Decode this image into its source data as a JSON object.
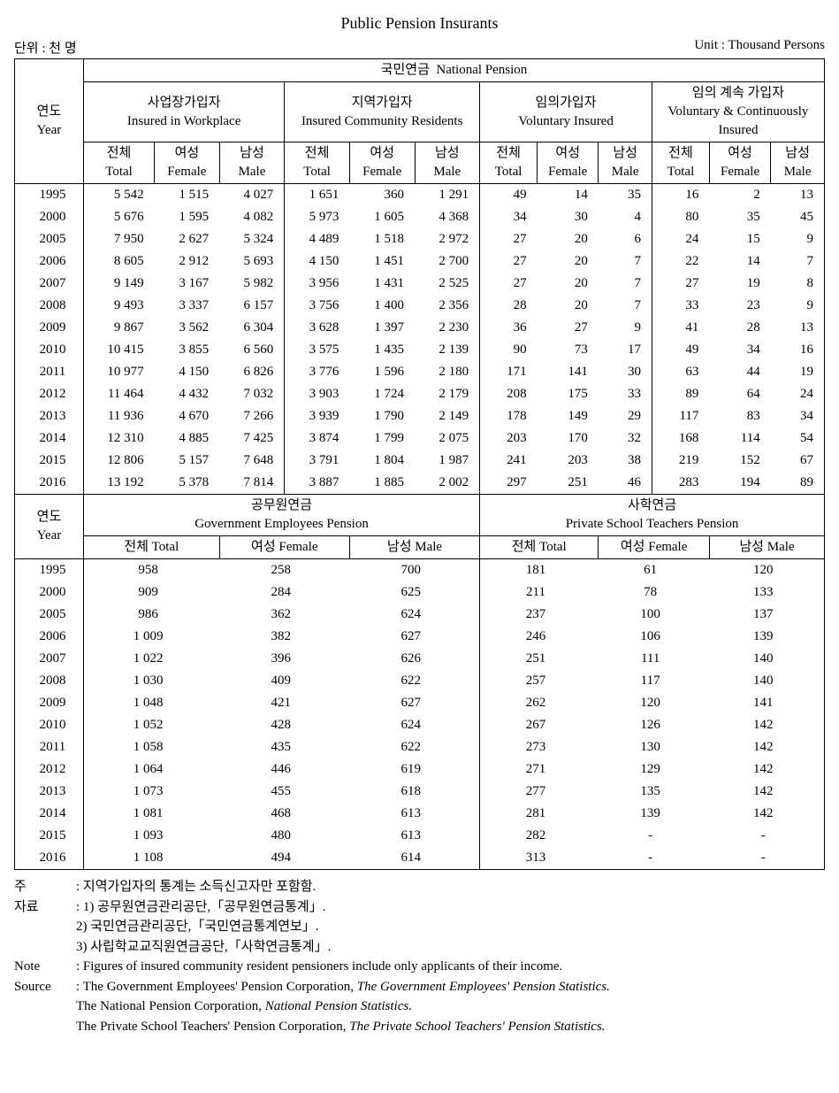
{
  "title": "Public Pension Insurants",
  "unit_left": "단위 : 천 명",
  "unit_right": "Unit : Thousand Persons",
  "header": {
    "year_kr": "연도",
    "year_en": "Year",
    "national_kr": "국민연금",
    "national_en": "National Pension",
    "workplace_kr": "사업장가입자",
    "workplace_en": "Insured in Workplace",
    "community_kr": "지역가입자",
    "community_en": "Insured Community Residents",
    "voluntary_kr": "임의가입자",
    "voluntary_en": "Voluntary Insured",
    "volcont_kr": "임의 계속 가입자",
    "volcont_en": "Voluntary & Continuously Insured",
    "total_kr": "전체",
    "total_en": "Total",
    "female_kr": "여성",
    "female_en": "Female",
    "male_kr": "남성",
    "male_en": "Male",
    "gov_kr": "공무원연금",
    "gov_en": "Government Employees Pension",
    "priv_kr": "사학연금",
    "priv_en": "Private School Teachers Pension",
    "total2": "전체 Total",
    "female2": "여성 Female",
    "male2": "남성 Male"
  },
  "national_rows": [
    {
      "year": "1995",
      "wt": "5 542",
      "wf": "1 515",
      "wm": "4 027",
      "ct": "1 651",
      "cf": "360",
      "cm": "1 291",
      "vt": "49",
      "vf": "14",
      "vm": "35",
      "vct": "16",
      "vcf": "2",
      "vcm": "13"
    },
    {
      "year": "2000",
      "wt": "5 676",
      "wf": "1 595",
      "wm": "4 082",
      "ct": "5 973",
      "cf": "1 605",
      "cm": "4 368",
      "vt": "34",
      "vf": "30",
      "vm": "4",
      "vct": "80",
      "vcf": "35",
      "vcm": "45"
    },
    {
      "year": "2005",
      "wt": "7 950",
      "wf": "2 627",
      "wm": "5 324",
      "ct": "4 489",
      "cf": "1 518",
      "cm": "2 972",
      "vt": "27",
      "vf": "20",
      "vm": "6",
      "vct": "24",
      "vcf": "15",
      "vcm": "9"
    },
    {
      "year": "2006",
      "wt": "8 605",
      "wf": "2 912",
      "wm": "5 693",
      "ct": "4 150",
      "cf": "1 451",
      "cm": "2 700",
      "vt": "27",
      "vf": "20",
      "vm": "7",
      "vct": "22",
      "vcf": "14",
      "vcm": "7"
    },
    {
      "year": "2007",
      "wt": "9 149",
      "wf": "3 167",
      "wm": "5 982",
      "ct": "3 956",
      "cf": "1 431",
      "cm": "2 525",
      "vt": "27",
      "vf": "20",
      "vm": "7",
      "vct": "27",
      "vcf": "19",
      "vcm": "8"
    },
    {
      "year": "2008",
      "wt": "9 493",
      "wf": "3 337",
      "wm": "6 157",
      "ct": "3 756",
      "cf": "1 400",
      "cm": "2 356",
      "vt": "28",
      "vf": "20",
      "vm": "7",
      "vct": "33",
      "vcf": "23",
      "vcm": "9"
    },
    {
      "year": "2009",
      "wt": "9 867",
      "wf": "3 562",
      "wm": "6 304",
      "ct": "3 628",
      "cf": "1 397",
      "cm": "2 230",
      "vt": "36",
      "vf": "27",
      "vm": "9",
      "vct": "41",
      "vcf": "28",
      "vcm": "13"
    },
    {
      "year": "2010",
      "wt": "10 415",
      "wf": "3 855",
      "wm": "6 560",
      "ct": "3 575",
      "cf": "1 435",
      "cm": "2 139",
      "vt": "90",
      "vf": "73",
      "vm": "17",
      "vct": "49",
      "vcf": "34",
      "vcm": "16"
    },
    {
      "year": "2011",
      "wt": "10 977",
      "wf": "4 150",
      "wm": "6 826",
      "ct": "3 776",
      "cf": "1 596",
      "cm": "2 180",
      "vt": "171",
      "vf": "141",
      "vm": "30",
      "vct": "63",
      "vcf": "44",
      "vcm": "19"
    },
    {
      "year": "2012",
      "wt": "11 464",
      "wf": "4 432",
      "wm": "7 032",
      "ct": "3 903",
      "cf": "1 724",
      "cm": "2 179",
      "vt": "208",
      "vf": "175",
      "vm": "33",
      "vct": "89",
      "vcf": "64",
      "vcm": "24"
    },
    {
      "year": "2013",
      "wt": "11 936",
      "wf": "4 670",
      "wm": "7 266",
      "ct": "3 939",
      "cf": "1 790",
      "cm": "2 149",
      "vt": "178",
      "vf": "149",
      "vm": "29",
      "vct": "117",
      "vcf": "83",
      "vcm": "34"
    },
    {
      "year": "2014",
      "wt": "12 310",
      "wf": "4 885",
      "wm": "7 425",
      "ct": "3 874",
      "cf": "1 799",
      "cm": "2 075",
      "vt": "203",
      "vf": "170",
      "vm": "32",
      "vct": "168",
      "vcf": "114",
      "vcm": "54"
    },
    {
      "year": "2015",
      "wt": "12 806",
      "wf": "5 157",
      "wm": "7 648",
      "ct": "3 791",
      "cf": "1 804",
      "cm": "1 987",
      "vt": "241",
      "vf": "203",
      "vm": "38",
      "vct": "219",
      "vcf": "152",
      "vcm": "67"
    },
    {
      "year": "2016",
      "wt": "13 192",
      "wf": "5 378",
      "wm": "7 814",
      "ct": "3 887",
      "cf": "1 885",
      "cm": "2 002",
      "vt": "297",
      "vf": "251",
      "vm": "46",
      "vct": "283",
      "vcf": "194",
      "vcm": "89"
    }
  ],
  "other_rows": [
    {
      "year": "1995",
      "gt": "958",
      "gf": "258",
      "gm": "700",
      "pt": "181",
      "pf": "61",
      "pm": "120"
    },
    {
      "year": "2000",
      "gt": "909",
      "gf": "284",
      "gm": "625",
      "pt": "211",
      "pf": "78",
      "pm": "133"
    },
    {
      "year": "2005",
      "gt": "986",
      "gf": "362",
      "gm": "624",
      "pt": "237",
      "pf": "100",
      "pm": "137"
    },
    {
      "year": "2006",
      "gt": "1 009",
      "gf": "382",
      "gm": "627",
      "pt": "246",
      "pf": "106",
      "pm": "139"
    },
    {
      "year": "2007",
      "gt": "1 022",
      "gf": "396",
      "gm": "626",
      "pt": "251",
      "pf": "111",
      "pm": "140"
    },
    {
      "year": "2008",
      "gt": "1 030",
      "gf": "409",
      "gm": "622",
      "pt": "257",
      "pf": "117",
      "pm": "140"
    },
    {
      "year": "2009",
      "gt": "1 048",
      "gf": "421",
      "gm": "627",
      "pt": "262",
      "pf": "120",
      "pm": "141"
    },
    {
      "year": "2010",
      "gt": "1 052",
      "gf": "428",
      "gm": "624",
      "pt": "267",
      "pf": "126",
      "pm": "142"
    },
    {
      "year": "2011",
      "gt": "1 058",
      "gf": "435",
      "gm": "622",
      "pt": "273",
      "pf": "130",
      "pm": "142"
    },
    {
      "year": "2012",
      "gt": "1 064",
      "gf": "446",
      "gm": "619",
      "pt": "271",
      "pf": "129",
      "pm": "142"
    },
    {
      "year": "2013",
      "gt": "1 073",
      "gf": "455",
      "gm": "618",
      "pt": "277",
      "pf": "135",
      "pm": "142"
    },
    {
      "year": "2014",
      "gt": "1 081",
      "gf": "468",
      "gm": "613",
      "pt": "281",
      "pf": "139",
      "pm": "142"
    },
    {
      "year": "2015",
      "gt": "1 093",
      "gf": "480",
      "gm": "613",
      "pt": "282",
      "pf": "-",
      "pm": "-"
    },
    {
      "year": "2016",
      "gt": "1 108",
      "gf": "494",
      "gm": "614",
      "pt": "313",
      "pf": "-",
      "pm": "-"
    }
  ],
  "notes": {
    "ju_label": "주",
    "ju_text": ": 지역가입자의 통계는 소득신고자만 포함함.",
    "jaryo_label": "자료",
    "jaryo_1": ": 1) 공무원연금관리공단,「공무원연금통계」.",
    "jaryo_2": "2) 국민연금관리공단,「국민연금통계연보」.",
    "jaryo_3": "3) 사립학교교직원연금공단,「사학연금통계」.",
    "note_label": "Note",
    "note_text": ": Figures of insured community resident pensioners include only applicants of their income.",
    "source_label": "Source",
    "source_1a": ": The Government Employees' Pension Corporation, ",
    "source_1b": "The Government Employees' Pension Statistics.",
    "source_2a": "The National Pension Corporation, ",
    "source_2b": "National Pension Statistics.",
    "source_3a": "The Private School Teachers' Pension Corporation, ",
    "source_3b": "The Private School Teachers' Pension Statistics."
  }
}
